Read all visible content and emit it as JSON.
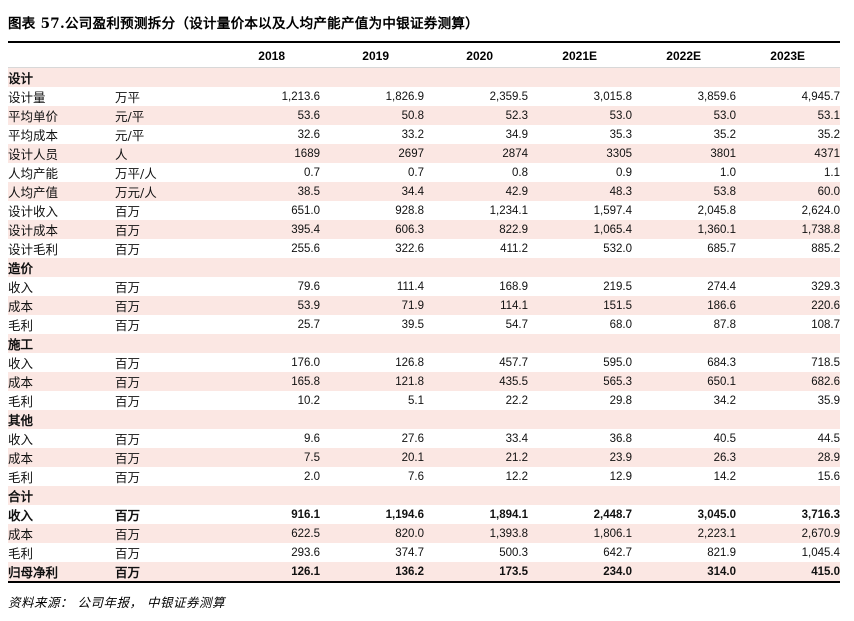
{
  "title": "图表 57.公司盈利预测拆分（设计量价本以及人均产能产值为中银证券测算）",
  "source": "资料来源： 公司年报， 中银证券测算",
  "colors": {
    "stripe_pink": "#fbe7e3",
    "rule_dark": "#000000",
    "rule_light": "#d8d8d8",
    "text": "#000000"
  },
  "chart_data": {
    "type": "table",
    "columns": [
      "2018",
      "2019",
      "2020",
      "2021E",
      "2022E",
      "2023E"
    ],
    "rows": [
      {
        "label": "设计",
        "unit": "",
        "type": "section",
        "values": []
      },
      {
        "label": "设计量",
        "unit": "万平",
        "type": "data",
        "values": [
          "1,213.6",
          "1,826.9",
          "2,359.5",
          "3,015.8",
          "3,859.6",
          "4,945.7"
        ]
      },
      {
        "label": "平均单价",
        "unit": "元/平",
        "type": "data",
        "values": [
          "53.6",
          "50.8",
          "52.3",
          "53.0",
          "53.0",
          "53.1"
        ]
      },
      {
        "label": "平均成本",
        "unit": "元/平",
        "type": "data",
        "values": [
          "32.6",
          "33.2",
          "34.9",
          "35.3",
          "35.2",
          "35.2"
        ]
      },
      {
        "label": "设计人员",
        "unit": "人",
        "type": "data",
        "values": [
          "1689",
          "2697",
          "2874",
          "3305",
          "3801",
          "4371"
        ]
      },
      {
        "label": "人均产能",
        "unit": "万平/人",
        "type": "data",
        "values": [
          "0.7",
          "0.7",
          "0.8",
          "0.9",
          "1.0",
          "1.1"
        ]
      },
      {
        "label": "人均产值",
        "unit": "万元/人",
        "type": "data",
        "values": [
          "38.5",
          "34.4",
          "42.9",
          "48.3",
          "53.8",
          "60.0"
        ]
      },
      {
        "label": "设计收入",
        "unit": "百万",
        "type": "data",
        "values": [
          "651.0",
          "928.8",
          "1,234.1",
          "1,597.4",
          "2,045.8",
          "2,624.0"
        ]
      },
      {
        "label": "设计成本",
        "unit": "百万",
        "type": "data",
        "values": [
          "395.4",
          "606.3",
          "822.9",
          "1,065.4",
          "1,360.1",
          "1,738.8"
        ]
      },
      {
        "label": "设计毛利",
        "unit": "百万",
        "type": "data",
        "values": [
          "255.6",
          "322.6",
          "411.2",
          "532.0",
          "685.7",
          "885.2"
        ]
      },
      {
        "label": "造价",
        "unit": "",
        "type": "section",
        "values": []
      },
      {
        "label": "收入",
        "unit": "百万",
        "type": "data",
        "values": [
          "79.6",
          "111.4",
          "168.9",
          "219.5",
          "274.4",
          "329.3"
        ]
      },
      {
        "label": "成本",
        "unit": "百万",
        "type": "data",
        "values": [
          "53.9",
          "71.9",
          "114.1",
          "151.5",
          "186.6",
          "220.6"
        ]
      },
      {
        "label": "毛利",
        "unit": "百万",
        "type": "data",
        "values": [
          "25.7",
          "39.5",
          "54.7",
          "68.0",
          "87.8",
          "108.7"
        ]
      },
      {
        "label": "施工",
        "unit": "",
        "type": "section",
        "values": []
      },
      {
        "label": "收入",
        "unit": "百万",
        "type": "data",
        "values": [
          "176.0",
          "126.8",
          "457.7",
          "595.0",
          "684.3",
          "718.5"
        ]
      },
      {
        "label": "成本",
        "unit": "百万",
        "type": "data",
        "values": [
          "165.8",
          "121.8",
          "435.5",
          "565.3",
          "650.1",
          "682.6"
        ]
      },
      {
        "label": "毛利",
        "unit": "百万",
        "type": "data",
        "values": [
          "10.2",
          "5.1",
          "22.2",
          "29.8",
          "34.2",
          "35.9"
        ]
      },
      {
        "label": "其他",
        "unit": "",
        "type": "section",
        "values": []
      },
      {
        "label": "收入",
        "unit": "百万",
        "type": "data",
        "values": [
          "9.6",
          "27.6",
          "33.4",
          "36.8",
          "40.5",
          "44.5"
        ]
      },
      {
        "label": "成本",
        "unit": "百万",
        "type": "data",
        "values": [
          "7.5",
          "20.1",
          "21.2",
          "23.9",
          "26.3",
          "28.9"
        ]
      },
      {
        "label": "毛利",
        "unit": "百万",
        "type": "data",
        "values": [
          "2.0",
          "7.6",
          "12.2",
          "12.9",
          "14.2",
          "15.6"
        ]
      },
      {
        "label": "合计",
        "unit": "",
        "type": "section",
        "values": []
      },
      {
        "label": "收入",
        "unit": "百万",
        "type": "data",
        "bold": true,
        "values": [
          "916.1",
          "1,194.6",
          "1,894.1",
          "2,448.7",
          "3,045.0",
          "3,716.3"
        ]
      },
      {
        "label": "成本",
        "unit": "百万",
        "type": "data",
        "values": [
          "622.5",
          "820.0",
          "1,393.8",
          "1,806.1",
          "2,223.1",
          "2,670.9"
        ]
      },
      {
        "label": "毛利",
        "unit": "百万",
        "type": "data",
        "values": [
          "293.6",
          "374.7",
          "500.3",
          "642.7",
          "821.9",
          "1,045.4"
        ]
      },
      {
        "label": "归母净利",
        "unit": "百万",
        "type": "data",
        "bold": true,
        "values": [
          "126.1",
          "136.2",
          "173.5",
          "234.0",
          "314.0",
          "415.0"
        ]
      }
    ]
  }
}
